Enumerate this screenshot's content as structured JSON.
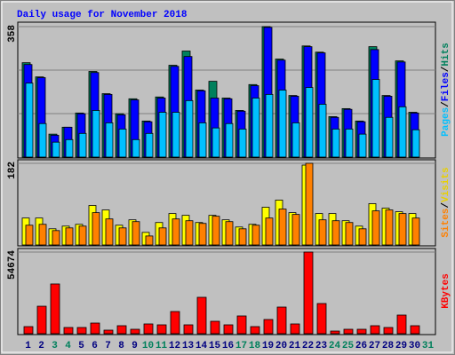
{
  "chart_data": {
    "type": "bar",
    "title": "Daily usage for November 2018",
    "categories": [
      "1",
      "2",
      "3",
      "4",
      "5",
      "6",
      "7",
      "8",
      "9",
      "10",
      "11",
      "12",
      "13",
      "14",
      "15",
      "16",
      "17",
      "18",
      "19",
      "20",
      "21",
      "22",
      "23",
      "24",
      "25",
      "26",
      "27",
      "28",
      "29",
      "30",
      "31"
    ],
    "category_colors": [
      "#000080",
      "#000080",
      "#00805c",
      "#00805c",
      "#000080",
      "#000080",
      "#000080",
      "#000080",
      "#000080",
      "#00805c",
      "#00805c",
      "#000080",
      "#000080",
      "#000080",
      "#000080",
      "#000080",
      "#00805c",
      "#00805c",
      "#000080",
      "#000080",
      "#000080",
      "#000080",
      "#000080",
      "#00805c",
      "#00805c",
      "#000080",
      "#000080",
      "#000080",
      "#000080",
      "#000080",
      "#00805c"
    ],
    "panels": [
      {
        "ylim": [
          0,
          358
        ],
        "yticks": [
          358
        ],
        "grid": true,
        "grid_divisions": 3,
        "series": [
          {
            "name": "Hits",
            "color": "#00805c",
            "label_color": "#00805c",
            "values": [
              259,
              220,
              63,
              82,
              121,
              235,
              174,
              119,
              160,
              99,
              165,
              252,
              291,
              184,
              208,
              162,
              128,
              199,
              358,
              269,
              169,
              305,
              288,
              111,
              133,
              99,
              303,
              169,
              264,
              123,
              0
            ]
          },
          {
            "name": "Files",
            "color": "#0000ff",
            "label_color": "#0000ff",
            "values": [
              254,
              218,
              60,
              82,
              119,
              232,
              172,
              116,
              157,
              97,
              162,
              249,
              276,
              182,
              162,
              160,
              126,
              196,
              356,
              266,
              167,
              303,
              286,
              109,
              131,
              97,
              295,
              167,
              261,
              121,
              0
            ]
          },
          {
            "name": "Pages",
            "color": "#00c0ff",
            "label_color": "#00c0ff",
            "values": [
              203,
              92,
              41,
              48,
              65,
              128,
              94,
              77,
              48,
              65,
              123,
              123,
              155,
              94,
              80,
              92,
              77,
              162,
              172,
              184,
              94,
              191,
              145,
              77,
              77,
              63,
              213,
              109,
              138,
              75,
              0
            ]
          }
        ]
      },
      {
        "ylim": [
          0,
          182
        ],
        "yticks": [
          182
        ],
        "grid": false,
        "series": [
          {
            "name": "Visits",
            "color": "#ffff00",
            "label_color": "#e8d000",
            "values": [
              60,
              60,
              36,
              42,
              46,
              88,
              78,
              44,
              56,
              28,
              50,
              70,
              66,
              50,
              66,
              56,
              40,
              46,
              84,
              100,
              72,
              178,
              70,
              70,
              54,
              42,
              92,
              82,
              74,
              70,
              0
            ]
          },
          {
            "name": "Sites",
            "color": "#ff8000",
            "label_color": "#ff8000",
            "values": [
              44,
              46,
              32,
              38,
              42,
              72,
              58,
              38,
              52,
              20,
              38,
              58,
              54,
              48,
              64,
              52,
              36,
              44,
              60,
              80,
              68,
              182,
              56,
              54,
              50,
              36,
              76,
              78,
              70,
              60,
              0
            ]
          }
        ]
      },
      {
        "ylim": [
          0,
          54674
        ],
        "yticks": [
          54674
        ],
        "grid": false,
        "series": [
          {
            "name": "KBytes",
            "color": "#ff0000",
            "label_color": "#ff0000",
            "values": [
              4750,
              18400,
              33300,
              4160,
              4160,
              7130,
              2380,
              5350,
              2970,
              6540,
              5940,
              14860,
              5940,
              24370,
              8320,
              5940,
              11890,
              4750,
              9510,
              17830,
              6540,
              54674,
              20210,
              1780,
              2970,
              2970,
              5350,
              4160,
              12480,
              5350,
              0
            ]
          }
        ]
      }
    ]
  }
}
